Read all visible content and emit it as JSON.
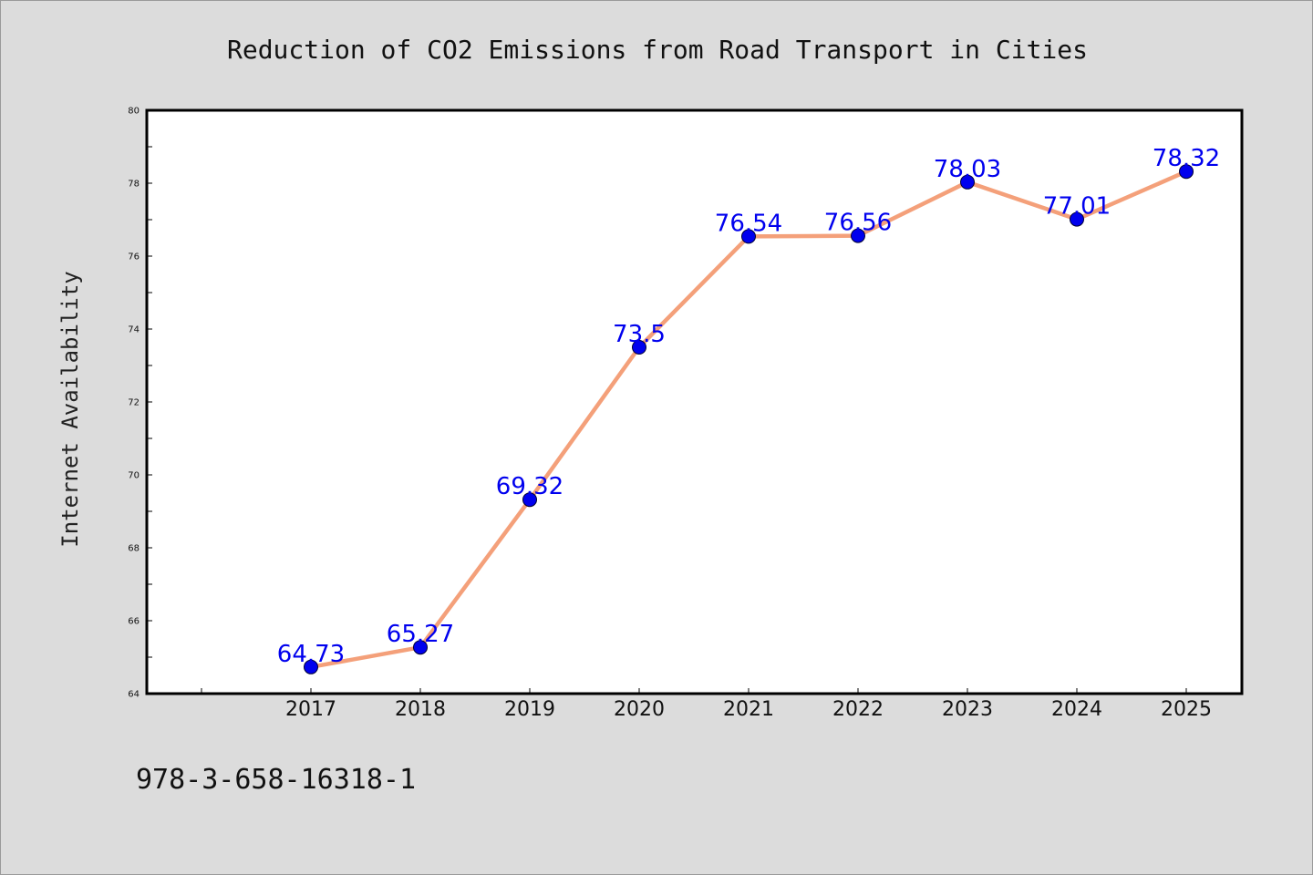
{
  "chart_data": {
    "type": "line",
    "title": "Reduction of CO2 Emissions from Road Transport in Cities",
    "xlabel": "",
    "ylabel": "Internet Availability",
    "categories": [
      "2017",
      "2018",
      "2019",
      "2020",
      "2021",
      "2022",
      "2023",
      "2024",
      "2025"
    ],
    "series": [
      {
        "values": [
          64.73,
          65.27,
          69.32,
          73.5,
          76.54,
          76.56,
          78.03,
          77.01,
          78.32
        ],
        "labels": [
          "64.73",
          "65.27",
          "69.32",
          "73.5",
          "76.54",
          "76.56",
          "78.03",
          "77.01",
          "78.32"
        ],
        "line_color": "#f4a07a",
        "marker_color": "#0000ee"
      }
    ],
    "ylim": [
      64,
      80
    ],
    "yticks_major": [
      "64",
      "66",
      "68",
      "70",
      "72",
      "74",
      "76",
      "78",
      "80"
    ],
    "grid": false,
    "legend": "none"
  },
  "footer_text": "978-3-658-16318-1"
}
